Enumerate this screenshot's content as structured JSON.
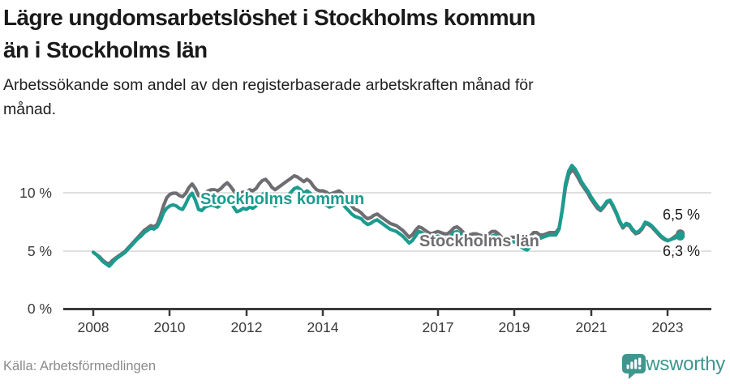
{
  "header": {
    "title_lines": [
      "Lägre ungdomsarbetslöshet i Stockholms kommun",
      "än i Stockholms län"
    ],
    "subtitle_lines": [
      "Arbetssökande som andel av den registerbaserade arbetskraften månad för",
      "månad."
    ]
  },
  "footer": {
    "source": "Källa: Arbetsförmedlingen",
    "brand_name": "Newsworthy"
  },
  "colors": {
    "kommun": "#1b9c8f",
    "lan": "#6e6e72",
    "grid": "#dcdcdc",
    "axis": "#3a3a3a",
    "text": "#1a1a1a",
    "muted": "#8b8b8b",
    "brand": "#3f968e"
  },
  "chart_data": {
    "type": "line",
    "frequency": "monthly",
    "start": "2008-01",
    "end": "2023-05",
    "ylabel": "",
    "xlabel": "",
    "ylim": [
      0,
      13
    ],
    "grid": "horizontal at 5 and 10",
    "ytick_labels": [
      "0 %",
      "5 %",
      "10 %"
    ],
    "ytick_values": [
      0,
      5,
      10
    ],
    "xtick_labels": [
      "2008",
      "2010",
      "2012",
      "2014",
      "2017",
      "2019",
      "2021",
      "2023"
    ],
    "xtick_values": [
      2008,
      2010,
      2012,
      2014,
      2017,
      2019,
      2021,
      2023
    ],
    "series": [
      {
        "name": "Stockholms län",
        "color": "#6e6e72",
        "end_label": "6,5 %",
        "values": [
          4.9,
          4.7,
          4.5,
          4.2,
          4.0,
          3.9,
          4.2,
          4.4,
          4.6,
          4.8,
          5.0,
          5.3,
          5.6,
          5.9,
          6.2,
          6.5,
          6.8,
          7.0,
          7.2,
          7.1,
          7.3,
          8.0,
          8.9,
          9.6,
          9.9,
          10.0,
          10.0,
          9.8,
          9.7,
          10.0,
          10.5,
          10.8,
          10.4,
          9.8,
          9.7,
          10.0,
          10.2,
          10.3,
          10.3,
          10.2,
          10.4,
          10.7,
          10.9,
          10.6,
          10.2,
          9.9,
          10.0,
          10.1,
          10.1,
          10.3,
          10.2,
          10.4,
          10.8,
          11.1,
          11.2,
          10.9,
          10.5,
          10.3,
          10.5,
          10.7,
          10.9,
          11.1,
          11.3,
          11.5,
          11.4,
          11.2,
          11.0,
          11.2,
          11.0,
          10.6,
          10.3,
          10.2,
          10.2,
          10.1,
          9.9,
          10.0,
          10.1,
          10.2,
          10.0,
          9.6,
          9.2,
          8.9,
          8.6,
          8.5,
          8.3,
          8.0,
          7.8,
          7.9,
          8.1,
          8.2,
          8.0,
          7.8,
          7.6,
          7.4,
          7.3,
          7.2,
          7.0,
          6.8,
          6.5,
          6.2,
          6.4,
          6.8,
          7.1,
          7.0,
          6.8,
          6.6,
          6.5,
          6.6,
          6.7,
          6.6,
          6.5,
          6.5,
          6.7,
          7.0,
          7.1,
          6.9,
          6.6,
          6.4,
          6.4,
          6.5,
          6.5,
          6.4,
          6.3,
          6.3,
          6.5,
          6.7,
          6.7,
          6.5,
          6.2,
          6.1,
          6.1,
          6.2,
          6.2,
          6.1,
          6.0,
          5.9,
          6.0,
          6.3,
          6.6,
          6.6,
          6.4,
          6.4,
          6.5,
          6.6,
          6.6,
          6.6,
          7.0,
          8.5,
          10.5,
          11.6,
          12.0,
          11.8,
          11.3,
          10.8,
          10.4,
          10.0,
          9.5,
          9.1,
          8.7,
          8.5,
          8.8,
          9.2,
          9.3,
          8.8,
          8.2,
          7.5,
          7.0,
          7.3,
          7.2,
          6.8,
          6.5,
          6.6,
          6.9,
          7.4,
          7.3,
          7.1,
          6.8,
          6.5,
          6.2,
          6.0,
          5.9,
          6.0,
          6.2,
          6.4,
          6.5
        ]
      },
      {
        "name": "Stockholms kommun",
        "color": "#1b9c8f",
        "end_label": "6,3 %",
        "values": [
          4.9,
          4.7,
          4.4,
          4.1,
          3.9,
          3.7,
          4.0,
          4.3,
          4.5,
          4.7,
          4.9,
          5.2,
          5.5,
          5.8,
          6.1,
          6.3,
          6.6,
          6.8,
          7.0,
          6.9,
          7.1,
          7.6,
          8.3,
          8.7,
          8.9,
          9.0,
          8.9,
          8.7,
          8.6,
          9.1,
          9.7,
          10.0,
          9.4,
          8.6,
          8.5,
          8.8,
          8.9,
          9.0,
          8.9,
          8.8,
          9.0,
          9.4,
          9.6,
          9.3,
          8.8,
          8.4,
          8.5,
          8.7,
          8.6,
          8.8,
          8.7,
          8.9,
          9.4,
          9.9,
          10.1,
          9.8,
          9.3,
          8.9,
          9.1,
          9.4,
          9.6,
          9.8,
          10.1,
          10.4,
          10.5,
          10.3,
          10.0,
          10.2,
          10.0,
          9.5,
          9.2,
          9.1,
          9.1,
          9.0,
          8.8,
          8.9,
          9.1,
          9.3,
          9.1,
          8.8,
          8.5,
          8.2,
          8.0,
          7.9,
          7.8,
          7.5,
          7.3,
          7.4,
          7.6,
          7.7,
          7.5,
          7.3,
          7.1,
          6.9,
          6.8,
          6.7,
          6.5,
          6.3,
          6.0,
          5.7,
          5.9,
          6.3,
          6.7,
          6.6,
          6.4,
          6.2,
          6.1,
          6.2,
          6.3,
          6.2,
          6.1,
          6.1,
          6.3,
          6.6,
          6.7,
          6.5,
          6.2,
          6.0,
          6.0,
          6.1,
          6.1,
          6.0,
          5.9,
          5.9,
          6.1,
          6.3,
          6.4,
          6.2,
          5.9,
          5.7,
          5.7,
          5.8,
          5.8,
          5.6,
          5.4,
          5.2,
          5.1,
          5.4,
          5.8,
          6.0,
          6.1,
          6.2,
          6.3,
          6.4,
          6.4,
          6.4,
          6.9,
          8.6,
          10.8,
          11.9,
          12.4,
          12.1,
          11.6,
          11.0,
          10.6,
          10.2,
          9.7,
          9.3,
          8.9,
          8.6,
          8.9,
          9.3,
          9.4,
          8.9,
          8.3,
          7.6,
          7.1,
          7.4,
          7.3,
          6.9,
          6.6,
          6.7,
          7.0,
          7.5,
          7.4,
          7.2,
          6.9,
          6.6,
          6.3,
          6.1,
          5.9,
          6.0,
          6.1,
          6.2,
          6.3
        ]
      }
    ]
  }
}
